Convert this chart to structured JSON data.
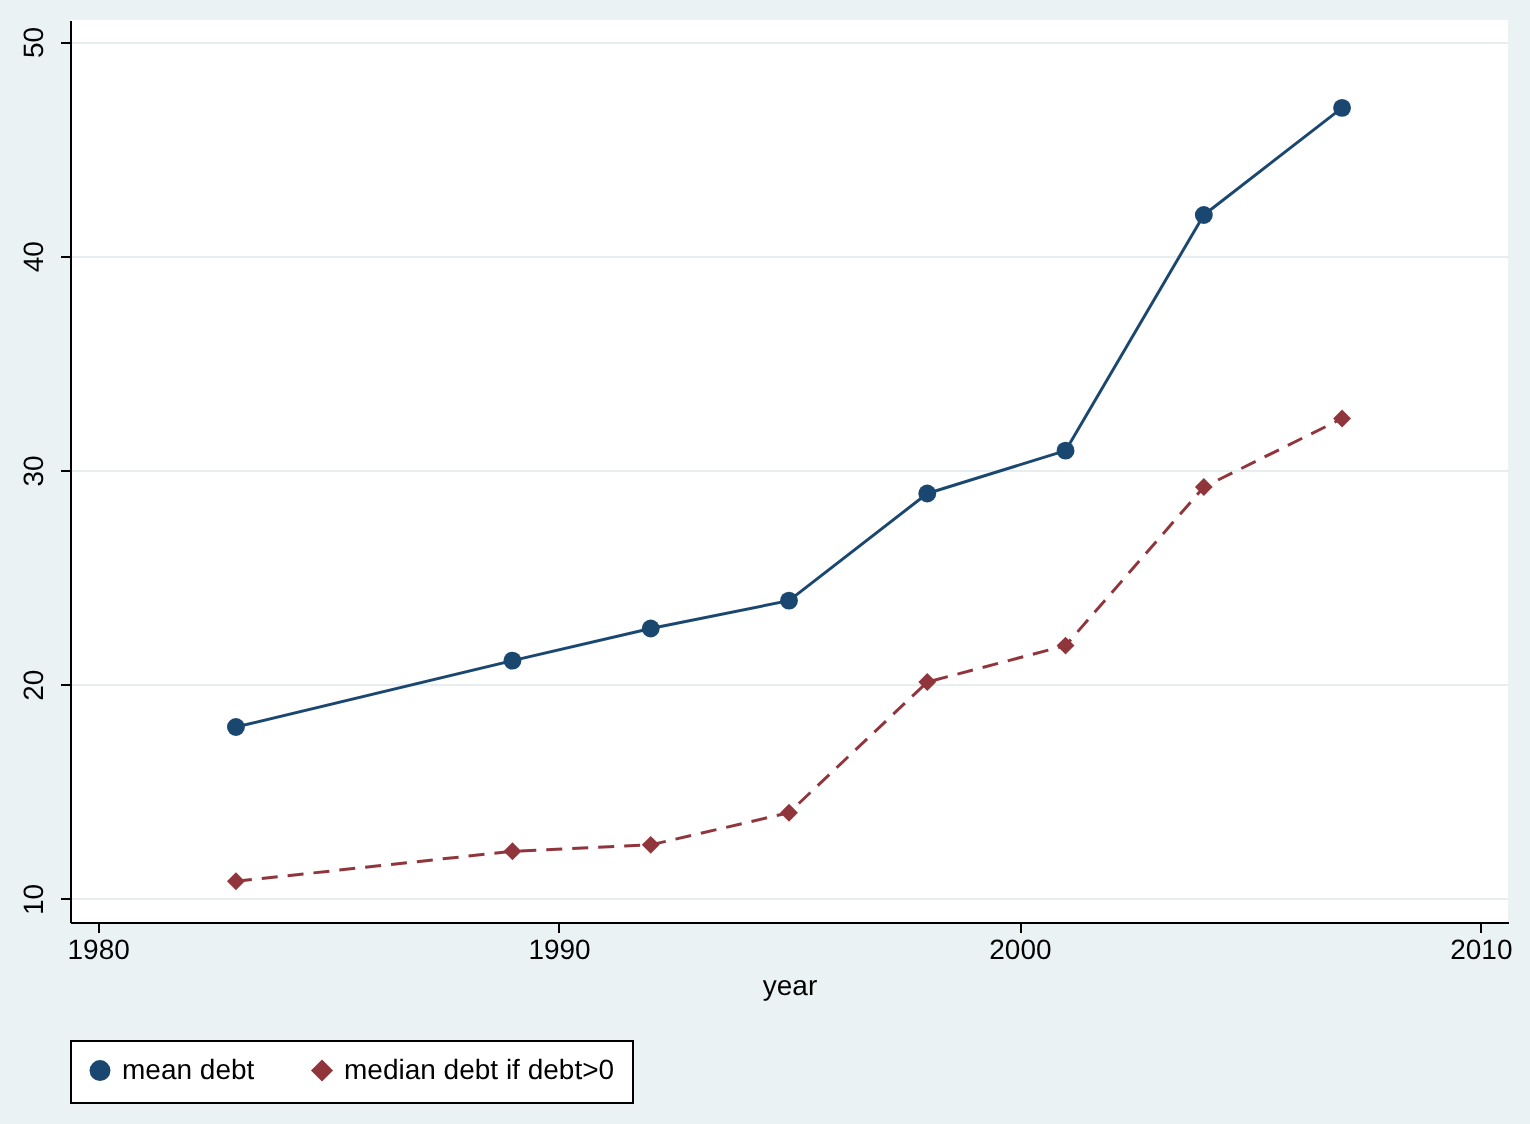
{
  "chart_data": {
    "type": "line",
    "xlabel": "year",
    "x": [
      1983,
      1989,
      1992,
      1995,
      1998,
      2001,
      2004,
      2007
    ],
    "series": [
      {
        "name": "mean debt",
        "color": "#1a476f",
        "marker": "circle",
        "line_style": "solid",
        "values": [
          18.0,
          21.1,
          22.6,
          23.9,
          28.9,
          30.9,
          41.9,
          46.9
        ]
      },
      {
        "name": "median debt if debt>0",
        "color": "#90353b",
        "marker": "diamond",
        "line_style": "dashed",
        "values": [
          10.8,
          12.2,
          12.5,
          14.0,
          20.1,
          21.8,
          29.2,
          32.4
        ]
      }
    ],
    "xlim": [
      1979.4,
      2010.6
    ],
    "xticks": [
      1980,
      1990,
      2000,
      2010
    ],
    "ylim": [
      8.9,
      51
    ],
    "yticks": [
      10,
      20,
      30,
      40,
      50
    ],
    "grid": "y",
    "legend": "bottom"
  }
}
